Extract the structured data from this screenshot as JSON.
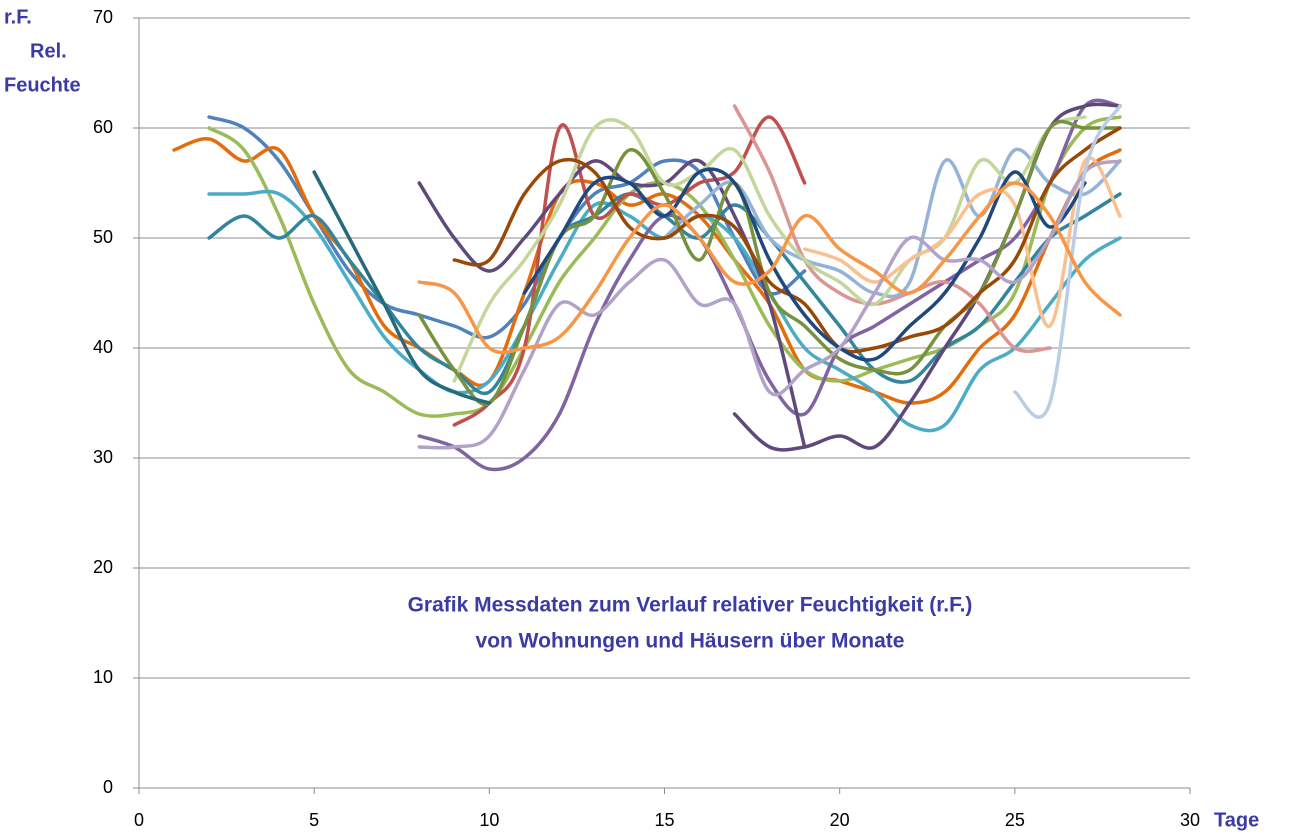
{
  "chart_data": {
    "type": "line",
    "y_label": [
      "r.F.",
      "Rel.",
      "Feuchte"
    ],
    "x_label": "Tage",
    "annotation": [
      "Grafik Messdaten zum Verlauf  relativer Feuchtigkeit  (r.F.)",
      "von Wohnungen und Häusern über Monate"
    ],
    "xlim": [
      0,
      30
    ],
    "xticks": [
      0,
      5,
      10,
      15,
      20,
      25,
      30
    ],
    "ylim": [
      0,
      70
    ],
    "yticks": [
      0,
      10,
      20,
      30,
      40,
      50,
      60,
      70
    ],
    "grid": true,
    "x": [
      1,
      2,
      3,
      4,
      5,
      6,
      7,
      8,
      9,
      10,
      11,
      12,
      13,
      14,
      15,
      16,
      17,
      18,
      19,
      20,
      21,
      22,
      23,
      24,
      25,
      26,
      27,
      28
    ],
    "series": [
      {
        "color": "#4f81bd",
        "values": [
          null,
          61,
          60,
          57,
          52,
          47,
          44,
          43,
          42,
          41,
          44,
          50,
          54,
          55,
          57,
          56,
          50,
          45,
          47,
          null,
          null,
          null,
          null,
          null,
          null,
          null,
          null,
          null
        ]
      },
      {
        "color": "#e46c0a",
        "values": [
          58,
          59,
          57,
          58,
          52,
          48,
          42,
          40,
          38,
          37,
          45,
          54,
          55,
          53,
          54,
          52,
          48,
          44,
          38,
          37,
          36,
          35,
          36,
          40,
          43,
          50,
          56,
          58
        ]
      },
      {
        "color": "#9bbb59",
        "values": [
          null,
          60,
          58,
          52,
          44,
          38,
          36,
          34,
          34,
          35,
          40,
          46,
          50,
          54,
          55,
          53,
          48,
          42,
          38,
          37,
          38,
          39,
          40,
          42,
          45,
          55,
          60,
          61
        ]
      },
      {
        "color": "#4bacc6",
        "values": [
          null,
          54,
          54,
          54,
          51,
          46,
          41,
          38,
          36,
          37,
          42,
          48,
          53,
          52,
          50,
          52,
          50,
          45,
          40,
          38,
          36,
          33,
          33,
          38,
          40,
          44,
          48,
          50
        ]
      },
      {
        "color": "#31859c",
        "values": [
          null,
          50,
          52,
          50,
          52,
          48,
          44,
          40,
          38,
          36,
          42,
          50,
          52,
          54,
          52,
          50,
          53,
          50,
          46,
          42,
          38,
          37,
          40,
          42,
          46,
          50,
          52,
          54
        ]
      },
      {
        "color": "#8064a2",
        "values": [
          null,
          null,
          null,
          null,
          null,
          null,
          null,
          32,
          31,
          29,
          30,
          34,
          42,
          48,
          52,
          50,
          44,
          37,
          34,
          40,
          42,
          44,
          46,
          48,
          50,
          55,
          62,
          62
        ]
      },
      {
        "color": "#c0504d",
        "values": [
          null,
          null,
          null,
          null,
          null,
          null,
          null,
          null,
          33,
          35,
          40,
          60,
          52,
          54,
          53,
          55,
          56,
          61,
          55,
          null,
          null,
          null,
          null,
          null,
          null,
          null,
          null,
          null
        ]
      },
      {
        "color": "#604a7b",
        "values": [
          null,
          null,
          null,
          null,
          null,
          null,
          null,
          55,
          50,
          47,
          50,
          54,
          57,
          55,
          55,
          57,
          52,
          44,
          31,
          null,
          null,
          null,
          null,
          null,
          null,
          null,
          null,
          null
        ]
      },
      {
        "color": "#5f497a",
        "values": [
          null,
          null,
          null,
          null,
          null,
          null,
          null,
          null,
          null,
          null,
          null,
          null,
          null,
          null,
          null,
          null,
          34,
          31,
          31,
          32,
          31,
          35,
          40,
          45,
          52,
          60,
          62,
          62
        ]
      },
      {
        "color": "#d99694",
        "values": [
          null,
          null,
          null,
          null,
          null,
          null,
          null,
          null,
          null,
          null,
          null,
          null,
          null,
          null,
          null,
          null,
          62,
          56,
          48,
          45,
          44,
          45,
          46,
          44,
          40,
          40,
          null,
          null
        ]
      },
      {
        "color": "#95b3d7",
        "values": [
          null,
          null,
          null,
          null,
          null,
          null,
          null,
          null,
          null,
          null,
          null,
          null,
          null,
          null,
          50,
          53,
          55,
          50,
          48,
          47,
          45,
          46,
          57,
          52,
          58,
          55,
          54,
          57
        ]
      },
      {
        "color": "#c3d69b",
        "values": [
          null,
          null,
          null,
          null,
          null,
          null,
          null,
          null,
          37,
          44,
          48,
          53,
          60,
          60,
          55,
          56,
          58,
          52,
          48,
          46,
          44,
          48,
          50,
          57,
          55,
          60,
          61,
          null
        ]
      },
      {
        "color": "#fac090",
        "values": [
          null,
          null,
          null,
          null,
          null,
          null,
          null,
          null,
          null,
          null,
          null,
          null,
          null,
          null,
          null,
          null,
          null,
          null,
          49,
          48,
          46,
          48,
          50,
          54,
          53,
          42,
          57,
          52
        ]
      },
      {
        "color": "#76923c",
        "values": [
          null,
          null,
          null,
          null,
          null,
          null,
          null,
          43,
          38,
          35,
          42,
          50,
          52,
          58,
          54,
          48,
          55,
          45,
          42,
          39,
          38,
          38,
          42,
          45,
          52,
          60,
          60,
          60
        ]
      },
      {
        "color": "#984807",
        "values": [
          null,
          null,
          null,
          null,
          null,
          null,
          null,
          null,
          48,
          48,
          54,
          57,
          56,
          51,
          50,
          52,
          51,
          46,
          44,
          40,
          40,
          41,
          42,
          45,
          48,
          55,
          58,
          60
        ]
      },
      {
        "color": "#1f497d",
        "values": [
          null,
          null,
          null,
          null,
          null,
          null,
          null,
          null,
          null,
          null,
          45,
          50,
          55,
          55,
          52,
          56,
          55,
          48,
          43,
          40,
          39,
          42,
          45,
          50,
          56,
          51,
          55,
          null
        ]
      },
      {
        "color": "#276a7c",
        "values": [
          null,
          null,
          null,
          null,
          56,
          50,
          44,
          38,
          36,
          35,
          null,
          null,
          null,
          null,
          null,
          null,
          null,
          null,
          null,
          null,
          null,
          null,
          null,
          null,
          null,
          null,
          null,
          null
        ]
      },
      {
        "color": "#b3a2c7",
        "values": [
          null,
          null,
          null,
          null,
          null,
          null,
          null,
          31,
          31,
          32,
          38,
          44,
          43,
          46,
          48,
          44,
          44,
          36,
          38,
          40,
          45,
          50,
          48,
          48,
          46,
          50,
          56,
          57
        ]
      },
      {
        "color": "#b9cde5",
        "values": [
          null,
          null,
          null,
          null,
          null,
          null,
          null,
          null,
          null,
          null,
          null,
          null,
          null,
          null,
          null,
          null,
          null,
          null,
          null,
          null,
          null,
          null,
          null,
          null,
          36,
          35,
          56,
          62
        ]
      },
      {
        "color": "#f79646",
        "values": [
          null,
          null,
          null,
          null,
          null,
          null,
          null,
          46,
          45,
          40,
          40,
          41,
          45,
          50,
          53,
          50,
          46,
          47,
          52,
          49,
          47,
          45,
          48,
          52,
          55,
          52,
          46,
          43
        ]
      }
    ]
  }
}
